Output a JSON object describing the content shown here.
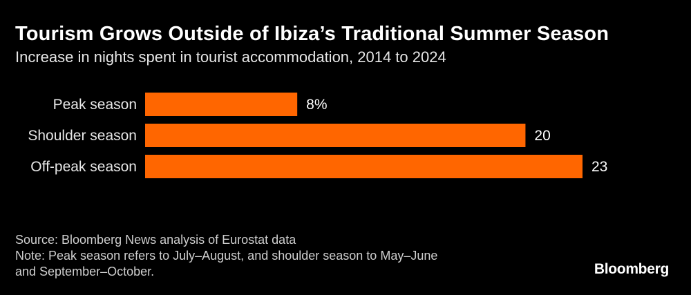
{
  "header": {
    "title": "Tourism Grows Outside of Ibiza’s Traditional Summer Season",
    "subtitle": "Increase in nights spent in tourist accommodation, 2014 to 2024"
  },
  "chart_data": {
    "type": "bar",
    "orientation": "horizontal",
    "categories": [
      "Peak season",
      "Shoulder season",
      "Off-peak season"
    ],
    "values": [
      8,
      20,
      23
    ],
    "value_labels": [
      "8%",
      "20",
      "23"
    ],
    "xlim": [
      0,
      23
    ],
    "grid": false,
    "legend": "none",
    "bar_color": "#ff6600"
  },
  "footer": {
    "source": "Source: Bloomberg News analysis of Eurostat data",
    "note_line1": "Note: Peak season refers to July–August, and shoulder season to May–June",
    "note_line2": "and September–October."
  },
  "branding": {
    "logo_text": "Bloomberg"
  },
  "colors": {
    "background": "#000000",
    "bar": "#ff6600",
    "text": "#ffffff"
  }
}
